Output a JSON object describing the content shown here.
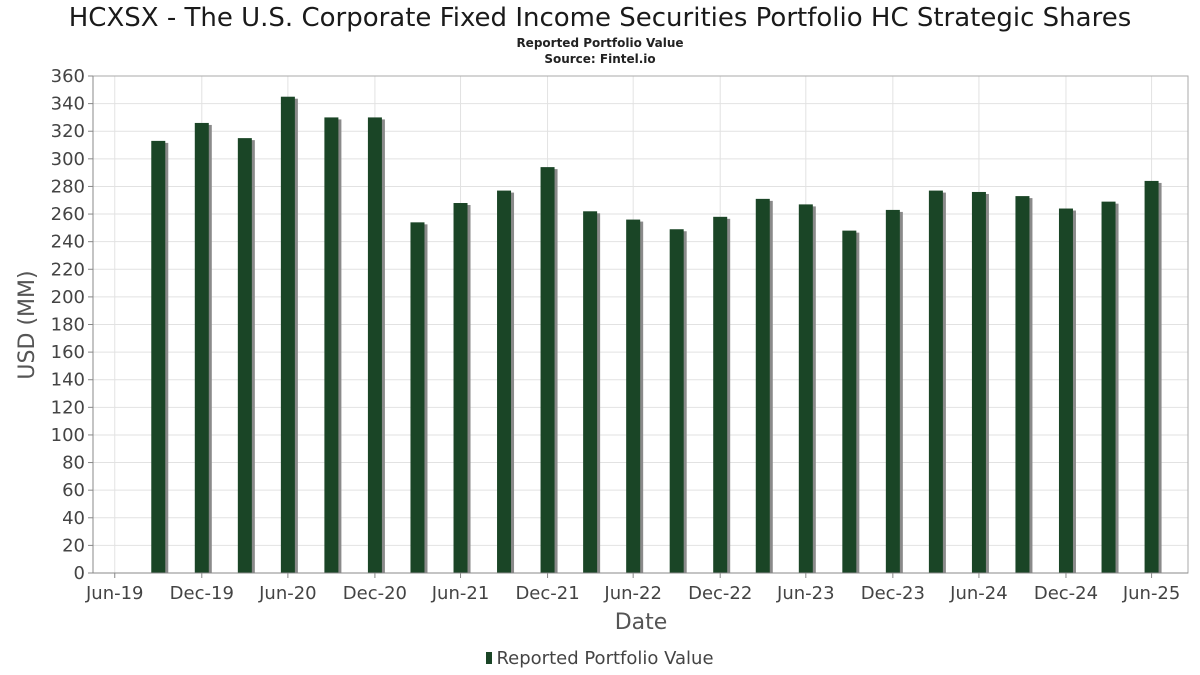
{
  "chart_data": {
    "type": "bar",
    "title": "HCXSX - The U.S. Corporate Fixed Income Securities Portfolio HC Strategic Shares",
    "subtitle": "Reported Portfolio Value",
    "source": "Source: Fintel.io",
    "xlabel": "Date",
    "ylabel": "USD (MM)",
    "ylim": [
      0,
      360
    ],
    "ystep": 20,
    "grid": true,
    "legend": "bottom",
    "bar_color": "#1a4526",
    "shadow_color": "#8a8a8a",
    "xlim": [
      "2019-05-15",
      "2025-09-15"
    ],
    "x_ticks": [
      {
        "label": "Jun-19",
        "date": "2019-06-30"
      },
      {
        "label": "Dec-19",
        "date": "2019-12-31"
      },
      {
        "label": "Jun-20",
        "date": "2020-06-30"
      },
      {
        "label": "Dec-20",
        "date": "2020-12-31"
      },
      {
        "label": "Jun-21",
        "date": "2021-06-30"
      },
      {
        "label": "Dec-21",
        "date": "2021-12-31"
      },
      {
        "label": "Jun-22",
        "date": "2022-06-30"
      },
      {
        "label": "Dec-22",
        "date": "2022-12-31"
      },
      {
        "label": "Jun-23",
        "date": "2023-06-30"
      },
      {
        "label": "Dec-23",
        "date": "2023-12-31"
      },
      {
        "label": "Jun-24",
        "date": "2024-06-30"
      },
      {
        "label": "Dec-24",
        "date": "2024-12-31"
      },
      {
        "label": "Jun-25",
        "date": "2025-06-30"
      }
    ],
    "series": [
      {
        "name": "Reported Portfolio Value",
        "points": [
          {
            "date": "2019-09-30",
            "value": 313
          },
          {
            "date": "2019-12-31",
            "value": 326
          },
          {
            "date": "2020-03-31",
            "value": 315
          },
          {
            "date": "2020-06-30",
            "value": 345
          },
          {
            "date": "2020-09-30",
            "value": 330
          },
          {
            "date": "2020-12-31",
            "value": 330
          },
          {
            "date": "2021-03-31",
            "value": 254
          },
          {
            "date": "2021-06-30",
            "value": 268
          },
          {
            "date": "2021-09-30",
            "value": 277
          },
          {
            "date": "2021-12-31",
            "value": 294
          },
          {
            "date": "2022-03-31",
            "value": 262
          },
          {
            "date": "2022-06-30",
            "value": 256
          },
          {
            "date": "2022-09-30",
            "value": 249
          },
          {
            "date": "2022-12-31",
            "value": 258
          },
          {
            "date": "2023-03-31",
            "value": 271
          },
          {
            "date": "2023-06-30",
            "value": 267
          },
          {
            "date": "2023-09-30",
            "value": 248
          },
          {
            "date": "2023-12-31",
            "value": 263
          },
          {
            "date": "2024-03-31",
            "value": 277
          },
          {
            "date": "2024-06-30",
            "value": 276
          },
          {
            "date": "2024-09-30",
            "value": 273
          },
          {
            "date": "2024-12-31",
            "value": 264
          },
          {
            "date": "2025-03-31",
            "value": 269
          },
          {
            "date": "2025-06-30",
            "value": 284
          }
        ]
      }
    ]
  }
}
